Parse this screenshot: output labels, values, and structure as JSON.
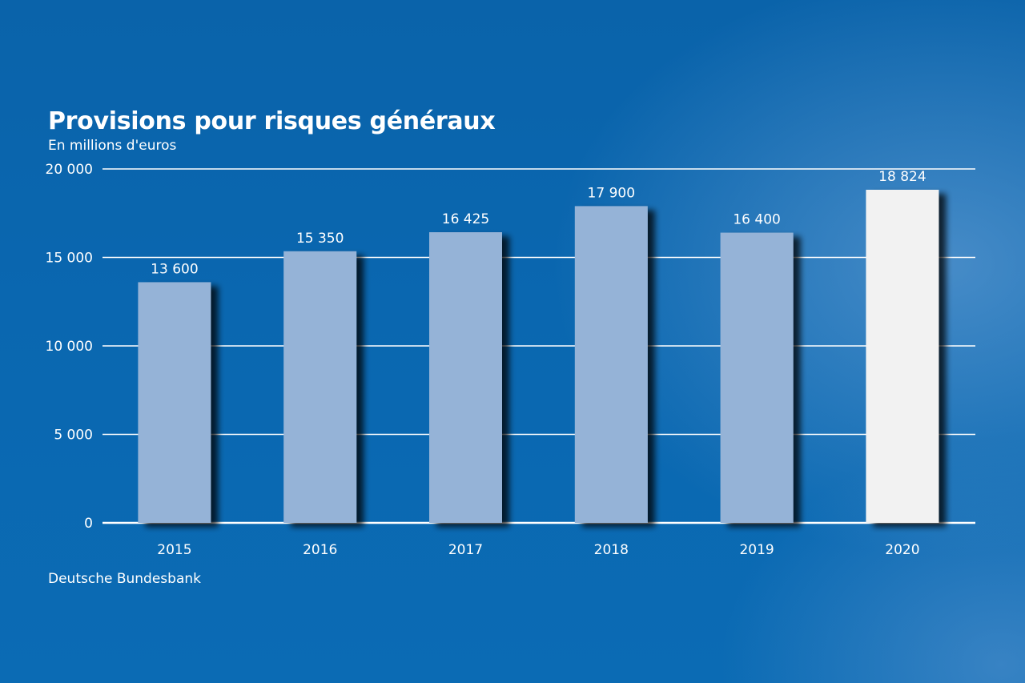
{
  "chart_data": {
    "type": "bar",
    "title": "Provisions pour risques généraux",
    "subtitle": "En millions d'euros",
    "source": "Deutsche Bundesbank",
    "categories": [
      "2015",
      "2016",
      "2017",
      "2018",
      "2019",
      "2020"
    ],
    "values": [
      13600,
      15350,
      16425,
      17900,
      16400,
      18824
    ],
    "value_labels": [
      "13 600",
      "15 350",
      "16 425",
      "17 900",
      "16 400",
      "18 824"
    ],
    "ylim": [
      0,
      20000
    ],
    "yticks": [
      0,
      5000,
      10000,
      15000,
      20000
    ],
    "ytick_labels": [
      "0",
      "5 000",
      "10 000",
      "15 000",
      "20 000"
    ],
    "grid": true,
    "colors": {
      "bar": "#95b3d7",
      "highlight_bar": "#f2f2f2",
      "highlight_index": 5,
      "text": "#ffffff",
      "background": "#0a66ae"
    }
  }
}
